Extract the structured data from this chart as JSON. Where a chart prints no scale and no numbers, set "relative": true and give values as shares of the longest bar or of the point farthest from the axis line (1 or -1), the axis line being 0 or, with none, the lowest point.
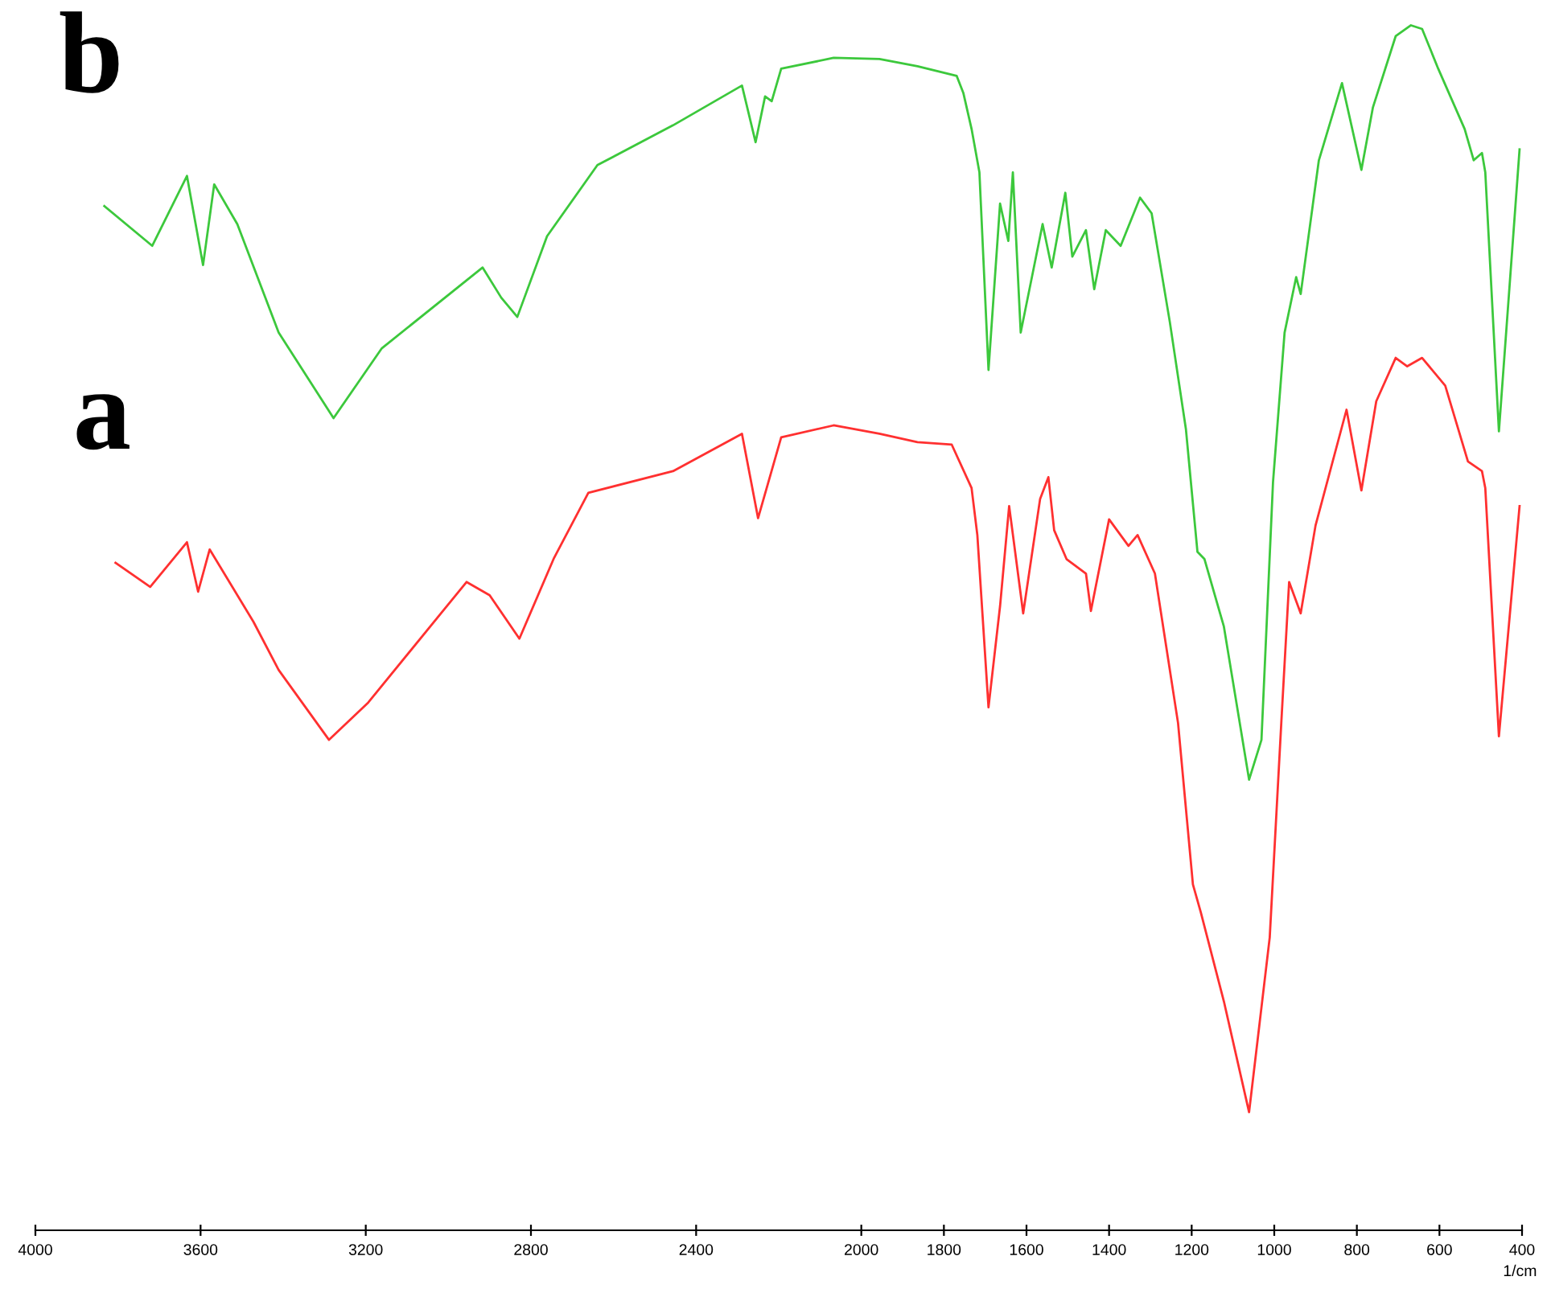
{
  "chart_data": {
    "type": "line",
    "relative": true,
    "xlabel": "1/cm",
    "xlim": [
      4000,
      400
    ],
    "xticks": [
      4000,
      3600,
      3200,
      2800,
      2400,
      2000,
      1800,
      1600,
      1400,
      1200,
      1000,
      800,
      600,
      400
    ],
    "grid": false,
    "legend": false,
    "marker": "none",
    "line_style": "solid",
    "series": [
      {
        "name": "b",
        "color": "#3cc83c",
        "x": [
          3833,
          3717,
          3633,
          3594,
          3567,
          3511,
          3411,
          3278,
          3161,
          2917,
          2872,
          2833,
          2761,
          2639,
          2456,
          2289,
          2256,
          2233,
          2217,
          2194,
          2067,
          1956,
          1864,
          1769,
          1753,
          1733,
          1714,
          1692,
          1664,
          1644,
          1633,
          1614,
          1561,
          1539,
          1506,
          1489,
          1456,
          1436,
          1408,
          1372,
          1325,
          1297,
          1253,
          1214,
          1186,
          1169,
          1122,
          1061,
          1031,
          1003,
          975,
          947,
          936,
          892,
          836,
          789,
          761,
          706,
          669,
          642,
          603,
          539,
          517,
          497,
          489,
          456,
          406
        ],
        "values": [
          0.85,
          0.817,
          0.875,
          0.801,
          0.868,
          0.835,
          0.745,
          0.674,
          0.732,
          0.799,
          0.774,
          0.758,
          0.825,
          0.884,
          0.917,
          0.95,
          0.903,
          0.941,
          0.937,
          0.964,
          0.973,
          0.972,
          0.966,
          0.958,
          0.944,
          0.914,
          0.878,
          0.714,
          0.852,
          0.821,
          0.878,
          0.745,
          0.835,
          0.799,
          0.861,
          0.808,
          0.83,
          0.781,
          0.83,
          0.817,
          0.857,
          0.844,
          0.754,
          0.665,
          0.563,
          0.557,
          0.501,
          0.374,
          0.407,
          0.621,
          0.745,
          0.791,
          0.777,
          0.888,
          0.952,
          0.88,
          0.932,
          0.991,
          1.0,
          0.997,
          0.964,
          0.914,
          0.888,
          0.894,
          0.878,
          0.663,
          0.897
        ]
      },
      {
        "name": "a",
        "color": "#ff3030",
        "x": [
          3806,
          3722,
          3633,
          3606,
          3578,
          3472,
          3411,
          3289,
          3194,
          2956,
          2900,
          2828,
          2744,
          2661,
          2456,
          2289,
          2250,
          2194,
          2067,
          1956,
          1864,
          1781,
          1733,
          1719,
          1692,
          1664,
          1642,
          1608,
          1567,
          1547,
          1533,
          1503,
          1456,
          1444,
          1400,
          1353,
          1331,
          1289,
          1233,
          1197,
          1178,
          1122,
          1061,
          1011,
          983,
          964,
          936,
          900,
          825,
          789,
          753,
          706,
          678,
          642,
          586,
          531,
          497,
          489,
          456,
          406
        ],
        "values": [
          0.554,
          0.534,
          0.571,
          0.53,
          0.565,
          0.505,
          0.465,
          0.407,
          0.438,
          0.538,
          0.527,
          0.491,
          0.558,
          0.612,
          0.63,
          0.661,
          0.591,
          0.658,
          0.668,
          0.661,
          0.654,
          0.652,
          0.616,
          0.577,
          0.434,
          0.518,
          0.601,
          0.512,
          0.607,
          0.625,
          0.581,
          0.557,
          0.545,
          0.514,
          0.59,
          0.568,
          0.577,
          0.545,
          0.421,
          0.287,
          0.264,
          0.19,
          0.098,
          0.243,
          0.421,
          0.538,
          0.512,
          0.585,
          0.681,
          0.614,
          0.688,
          0.724,
          0.717,
          0.724,
          0.701,
          0.638,
          0.63,
          0.616,
          0.41,
          0.601
        ]
      }
    ]
  }
}
